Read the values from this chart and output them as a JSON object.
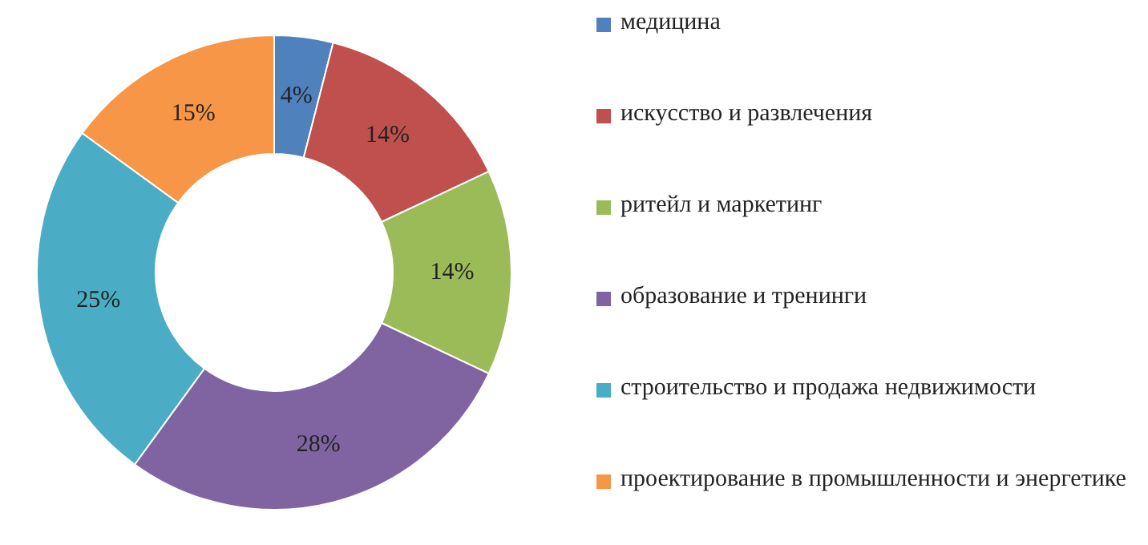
{
  "chart_data": {
    "type": "donut",
    "categories": [
      "медицина",
      "искусство и развлечения",
      "ритейл и маркетинг",
      "образование и тренинги",
      "строительство и продажа недвижимости",
      "проектирование в промышленности и энергетике"
    ],
    "values": [
      4,
      14,
      14,
      28,
      25,
      15
    ],
    "value_labels": [
      "4%",
      "14%",
      "14%",
      "28%",
      "25%",
      "15%"
    ],
    "colors": [
      "#4f81bd",
      "#c0504d",
      "#9bbb59",
      "#8064a2",
      "#4bacc6",
      "#f79646"
    ],
    "legend": "right"
  }
}
